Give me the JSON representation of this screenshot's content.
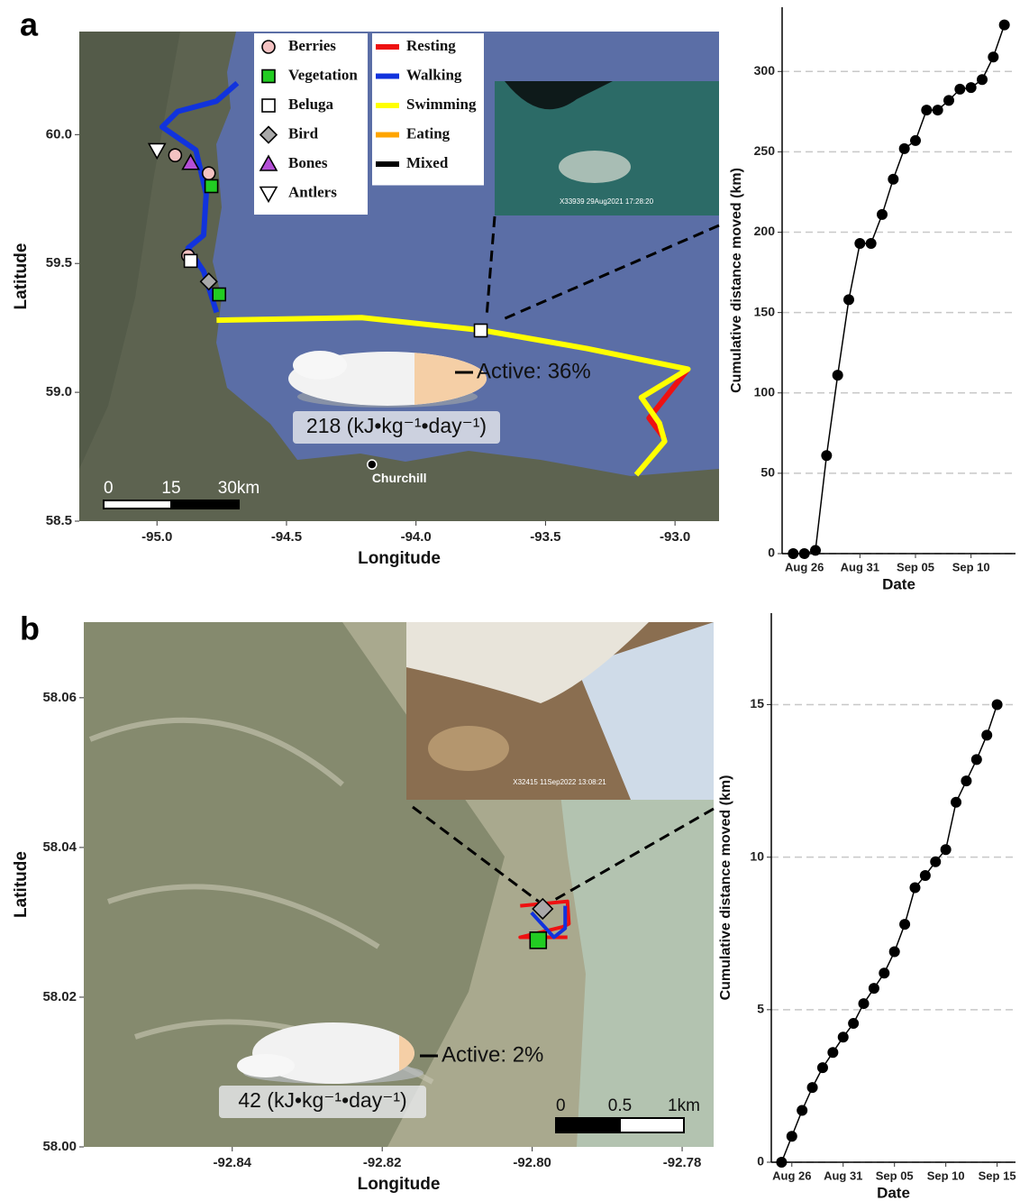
{
  "chart_data": [
    {
      "type": "map",
      "panel_label": "a",
      "xlabel": "Longitude",
      "ylabel": "Latitude",
      "xlim": [
        -95.3,
        -92.83
      ],
      "ylim": [
        58.5,
        60.4
      ],
      "xticks": [
        {
          "value": -95,
          "label": "-95.0"
        },
        -94.5,
        {
          "value": -94,
          "label": "-94.0"
        },
        -93.5,
        {
          "value": -93,
          "label": "-93.0"
        }
      ],
      "yticks": [
        58.5,
        {
          "value": 59,
          "label": "59.0"
        },
        59.5,
        {
          "value": 60,
          "label": "60.0"
        }
      ],
      "legend": true,
      "series": [
        {
          "name": "Berries",
          "marker": "circle",
          "color": "#f4c2c2",
          "x": [
            -94.93,
            -94.8,
            -94.88
          ],
          "y": [
            59.92,
            59.85,
            59.53
          ]
        },
        {
          "name": "Vegetation",
          "marker": "square",
          "color": "#22cc22",
          "x": [
            -94.79,
            -94.76
          ],
          "y": [
            59.8,
            59.38
          ]
        },
        {
          "name": "Beluga",
          "marker": "square",
          "color": "#ffffff",
          "x": [
            -94.87,
            -93.75
          ],
          "y": [
            59.51,
            59.24
          ]
        },
        {
          "name": "Bird",
          "marker": "diamond",
          "color": "#a9a9a9",
          "x": [
            -94.8
          ],
          "y": [
            59.43
          ]
        },
        {
          "name": "Bones",
          "marker": "triangle",
          "color": "#b44fd6",
          "x": [
            -94.87
          ],
          "y": [
            59.89
          ]
        },
        {
          "name": "Antlers",
          "marker": "triangle-down",
          "color": "#ffffff",
          "x": [
            -95.0
          ],
          "y": [
            59.94
          ]
        },
        {
          "name": "Resting",
          "color": "#ee1111",
          "x": [
            -92.95,
            -93.1,
            -93.04
          ],
          "y": [
            59.09,
            58.9,
            58.82
          ]
        },
        {
          "name": "Walking",
          "color": "#1133dd",
          "x": [
            -94.69,
            -94.77,
            -94.92,
            -94.98,
            -94.85,
            -94.81,
            -94.82,
            -94.88,
            -94.82,
            -94.77
          ],
          "y": [
            60.2,
            60.13,
            60.09,
            60.03,
            59.94,
            59.77,
            59.61,
            59.56,
            59.47,
            59.31
          ]
        },
        {
          "name": "Swimming",
          "color": "#ffff00",
          "x": [
            -94.77,
            -94.21,
            -93.74,
            -93.34,
            -92.95,
            -93.13,
            -93.06,
            -93.04,
            -93.15
          ],
          "y": [
            59.28,
            59.29,
            59.24,
            59.17,
            59.09,
            58.98,
            58.88,
            58.81,
            58.68
          ]
        },
        {
          "name": "Eating",
          "color": "#ffa500"
        },
        {
          "name": "Mixed",
          "color": "#000000"
        }
      ],
      "place": {
        "name": "Churchill",
        "x": -94.17,
        "y": 58.72
      },
      "active": "Active: 36%",
      "energy": "218 (kJ•kg⁻¹•day⁻¹)",
      "photo_caption": "X33939 29Aug2021 17:28:20",
      "scalebar": [
        "0",
        "15",
        "30km"
      ]
    },
    {
      "type": "line",
      "xlabel": "Date",
      "ylabel": "Cumulative distance moved (km)",
      "color": "#000000",
      "grid": true,
      "xlim": [
        "Aug 24",
        "Sep 14"
      ],
      "xticks": [
        "Aug 26",
        "Aug 31",
        "Sep 05",
        "Sep 10"
      ],
      "ylim": [
        0,
        340
      ],
      "yticks": [
        0,
        50,
        100,
        150,
        200,
        250,
        300
      ],
      "x": [
        "Aug 25",
        "Aug 26",
        "Aug 27",
        "Aug 28",
        "Aug 29",
        "Aug 30",
        "Aug 31",
        "Sep 01",
        "Sep 02",
        "Sep 03",
        "Sep 04",
        "Sep 05",
        "Sep 06",
        "Sep 07",
        "Sep 08",
        "Sep 09",
        "Sep 10",
        "Sep 11",
        "Sep 12",
        "Sep 13"
      ],
      "values": [
        0,
        0,
        2,
        61,
        111,
        158,
        193,
        193,
        211,
        233,
        252,
        257,
        276,
        276,
        282,
        289,
        290,
        295,
        309,
        329
      ]
    },
    {
      "type": "map",
      "panel_label": "b",
      "xlabel": "Longitude",
      "ylabel": "Latitude",
      "xlim": [
        -92.8598,
        -92.7758
      ],
      "ylim": [
        58.0,
        58.0701
      ],
      "xticks": [
        -92.84,
        -92.82,
        {
          "value": -92.8,
          "label": "-92.80"
        },
        -92.78
      ],
      "yticks": [
        {
          "value": 58,
          "label": "58.00"
        },
        58.02,
        58.04,
        58.06
      ],
      "legend": false,
      "series": [
        {
          "marker": "diamond",
          "color": "#a9a9a9",
          "x": [
            -92.7986
          ],
          "y": [
            58.0318
          ]
        },
        {
          "marker": "square",
          "color": "#22cc22",
          "x": [
            -92.7992
          ],
          "y": [
            58.0276
          ]
        },
        {
          "color": "#ee1111",
          "x": [
            -92.8016,
            -92.7953,
            -92.7951,
            -92.7959,
            -92.8016,
            -92.7953
          ],
          "y": [
            58.0322,
            58.0328,
            58.0298,
            58.0294,
            58.028,
            58.028
          ]
        },
        {
          "color": "#1133dd",
          "x": [
            -92.8001,
            -92.7971,
            -92.7956,
            -92.7956
          ],
          "y": [
            58.0313,
            58.028,
            58.0292,
            58.0322
          ]
        }
      ],
      "active": "Active: 2%",
      "energy": "42 (kJ•kg⁻¹•day⁻¹)",
      "photo_caption": "X32415 11Sep2022 13:08:21",
      "scalebar": [
        "0",
        "0.5",
        "1km"
      ]
    },
    {
      "type": "line",
      "xlabel": "Date",
      "ylabel": "Cumulative distance moved (km)",
      "color": "#000000",
      "grid": true,
      "xlim": [
        "Aug 24",
        "Sep 16"
      ],
      "xticks": [
        "Aug 26",
        "Aug 31",
        "Sep 05",
        "Sep 10",
        "Sep 15"
      ],
      "ylim": [
        0,
        18
      ],
      "yticks": [
        0,
        5,
        10,
        15
      ],
      "x": [
        "Aug 25",
        "Aug 26",
        "Aug 27",
        "Aug 28",
        "Aug 29",
        "Aug 30",
        "Aug 31",
        "Sep 01",
        "Sep 02",
        "Sep 03",
        "Sep 04",
        "Sep 05",
        "Sep 06",
        "Sep 07",
        "Sep 08",
        "Sep 09",
        "Sep 10",
        "Sep 11",
        "Sep 12",
        "Sep 13",
        "Sep 14",
        "Sep 15"
      ],
      "values": [
        0,
        0.85,
        1.7,
        2.45,
        3.1,
        3.6,
        4.1,
        4.55,
        5.2,
        5.7,
        6.2,
        6.9,
        7.8,
        9.0,
        9.4,
        9.85,
        10.25,
        11.8,
        12.5,
        13.2,
        14.0,
        15.0
      ]
    }
  ]
}
